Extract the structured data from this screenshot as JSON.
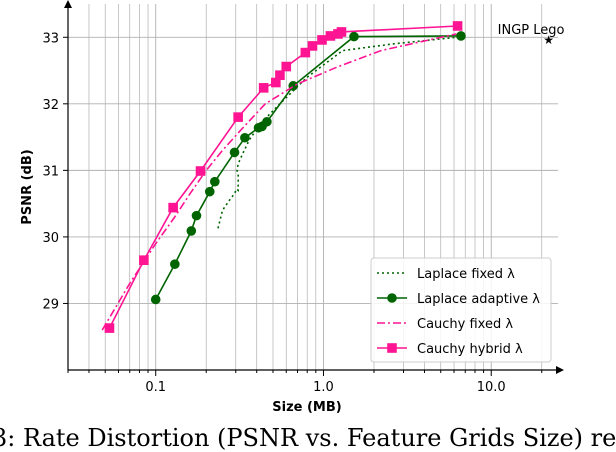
{
  "chart_data": {
    "type": "line",
    "xlabel": "Size (MB)",
    "ylabel": "PSNR (dB)",
    "xscale": "log",
    "xlim": [
      0.03,
      25
    ],
    "ylim": [
      28.0,
      33.5
    ],
    "x_ticks": [
      0.1,
      1.0,
      10.0
    ],
    "x_tick_labels": [
      "0.1",
      "1.0",
      "10.0"
    ],
    "y_ticks": [
      29,
      30,
      31,
      32,
      33
    ],
    "y_tick_labels": [
      "29",
      "30",
      "31",
      "32",
      "33"
    ],
    "grid": "x-major-and-minor",
    "legend_position": "bottom-right",
    "series": [
      {
        "name": "Laplace fixed λ",
        "color": "#006400",
        "style": "dotted",
        "marker": "none",
        "x": [
          0.235,
          0.25,
          0.275,
          0.295,
          0.303,
          0.31,
          0.31,
          0.305,
          0.31,
          0.33,
          0.36,
          0.42,
          0.55,
          0.8,
          1.3,
          2.6,
          6.2
        ],
        "y": [
          30.13,
          30.4,
          30.55,
          30.65,
          30.72,
          30.7,
          30.95,
          31.0,
          31.1,
          31.25,
          31.45,
          31.7,
          32.0,
          32.4,
          32.8,
          32.9,
          33.0
        ]
      },
      {
        "name": "Laplace adaptive λ",
        "color": "#006400",
        "style": "solid",
        "marker": "circle",
        "x": [
          0.1,
          0.13,
          0.163,
          0.175,
          0.21,
          0.225,
          0.295,
          0.34,
          0.41,
          0.43,
          0.46,
          0.66,
          1.52,
          6.6
        ],
        "y": [
          29.06,
          29.59,
          30.09,
          30.32,
          30.68,
          30.83,
          31.27,
          31.49,
          31.64,
          31.66,
          31.73,
          32.27,
          33.01,
          33.02
        ]
      },
      {
        "name": "Cauchy fixed λ",
        "color": "#ff1493",
        "style": "dashdot",
        "marker": "none",
        "x": [
          0.048,
          0.07,
          0.1,
          0.13,
          0.16,
          0.2,
          0.25,
          0.32,
          0.45,
          0.7,
          1.2,
          2.2,
          6.2
        ],
        "y": [
          28.6,
          29.3,
          29.9,
          30.3,
          30.65,
          31.0,
          31.3,
          31.6,
          32.0,
          32.3,
          32.55,
          32.8,
          33.05
        ]
      },
      {
        "name": "Cauchy hybrid λ",
        "color": "#ff1493",
        "style": "solid",
        "marker": "square",
        "x": [
          0.053,
          0.085,
          0.127,
          0.185,
          0.31,
          0.44,
          0.52,
          0.55,
          0.6,
          0.78,
          0.86,
          0.98,
          1.1,
          1.22,
          1.28,
          6.3
        ],
        "y": [
          28.63,
          29.65,
          30.44,
          30.99,
          31.8,
          32.24,
          32.32,
          32.43,
          32.56,
          32.77,
          32.87,
          32.96,
          33.02,
          33.05,
          33.08,
          33.17
        ]
      }
    ],
    "annotations": [
      {
        "text": "INGP Lego",
        "x": 22,
        "y": 32.96,
        "marker": "star"
      }
    ]
  },
  "caption": "3: Rate Distortion (PSNR vs. Feature Grids Size) re"
}
